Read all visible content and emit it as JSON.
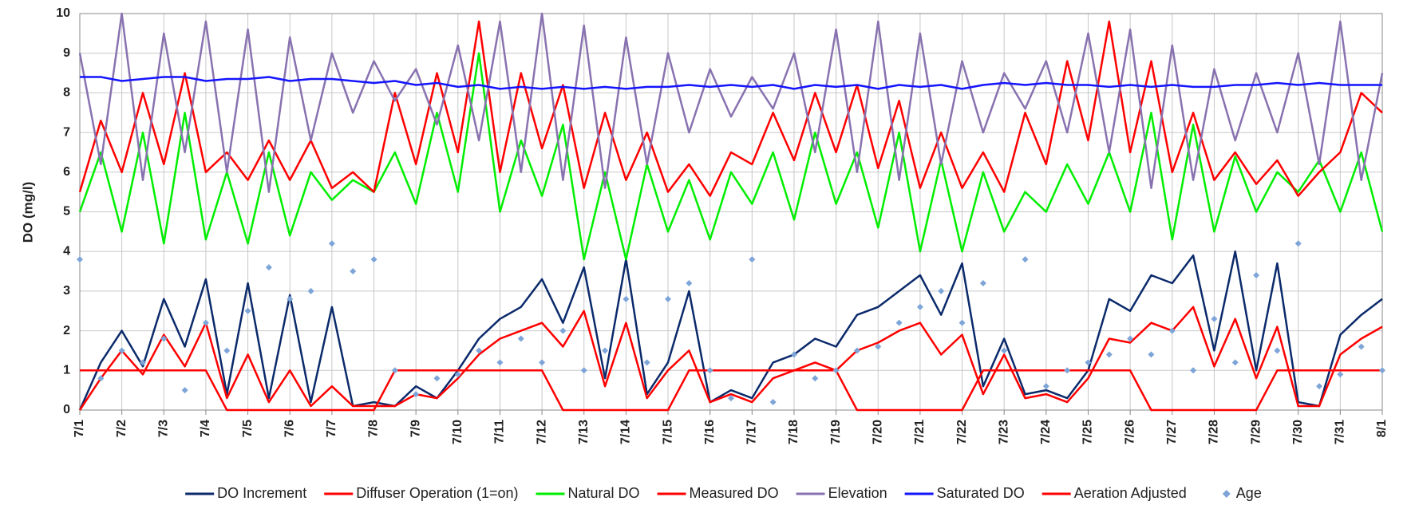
{
  "chart_data": {
    "type": "line",
    "y_label": "DO (mg/l)",
    "x": [
      0,
      0.5,
      1,
      1.5,
      2,
      2.5,
      3,
      3.5,
      4,
      4.5,
      5,
      5.5,
      6,
      6.5,
      7,
      7.5,
      8,
      8.5,
      9,
      9.5,
      10,
      10.5,
      11,
      11.5,
      12,
      12.5,
      13,
      13.5,
      14,
      14.5,
      15,
      15.5,
      16,
      16.5,
      17,
      17.5,
      18,
      18.5,
      19,
      19.5,
      20,
      20.5,
      21,
      21.5,
      22,
      22.5,
      23,
      23.5,
      24,
      24.5,
      25,
      25.5,
      26,
      26.5,
      27,
      27.5,
      28,
      28.5,
      29,
      29.5,
      30,
      30.5,
      31
    ],
    "xlim": [
      0,
      31
    ],
    "xticks": [
      {
        "value": 0,
        "label": "7/1"
      },
      {
        "value": 1,
        "label": "7/2"
      },
      {
        "value": 2,
        "label": "7/3"
      },
      {
        "value": 3,
        "label": "7/4"
      },
      {
        "value": 4,
        "label": "7/5"
      },
      {
        "value": 5,
        "label": "7/6"
      },
      {
        "value": 6,
        "label": "7/7"
      },
      {
        "value": 7,
        "label": "7/8"
      },
      {
        "value": 8,
        "label": "7/9"
      },
      {
        "value": 9,
        "label": "7/10"
      },
      {
        "value": 10,
        "label": "7/11"
      },
      {
        "value": 11,
        "label": "7/12"
      },
      {
        "value": 12,
        "label": "7/13"
      },
      {
        "value": 13,
        "label": "7/14"
      },
      {
        "value": 14,
        "label": "7/15"
      },
      {
        "value": 15,
        "label": "7/16"
      },
      {
        "value": 16,
        "label": "7/17"
      },
      {
        "value": 17,
        "label": "7/18"
      },
      {
        "value": 18,
        "label": "7/19"
      },
      {
        "value": 19,
        "label": "7/20"
      },
      {
        "value": 20,
        "label": "7/21"
      },
      {
        "value": 21,
        "label": "7/22"
      },
      {
        "value": 22,
        "label": "7/23"
      },
      {
        "value": 23,
        "label": "7/24"
      },
      {
        "value": 24,
        "label": "7/25"
      },
      {
        "value": 25,
        "label": "7/26"
      },
      {
        "value": 26,
        "label": "7/27"
      },
      {
        "value": 27,
        "label": "7/28"
      },
      {
        "value": 28,
        "label": "7/29"
      },
      {
        "value": 29,
        "label": "7/30"
      },
      {
        "value": 30,
        "label": "7/31"
      },
      {
        "value": 31,
        "label": "8/1"
      }
    ],
    "ylim": [
      0,
      10
    ],
    "yticks": [
      0,
      1,
      2,
      3,
      4,
      5,
      6,
      7,
      8,
      9,
      10
    ],
    "grid": true,
    "legend": "bottom",
    "series": [
      {
        "name": "DO Increment",
        "color": "#0b2a6b",
        "type": "line",
        "values": [
          0,
          1.2,
          2.0,
          1.1,
          2.8,
          1.6,
          3.3,
          0.4,
          3.2,
          0.3,
          2.9,
          0.2,
          2.6,
          0.1,
          0.2,
          0.1,
          0.6,
          0.3,
          1.0,
          1.8,
          2.3,
          2.6,
          3.3,
          2.2,
          3.6,
          0.8,
          3.8,
          0.4,
          1.2,
          3.0,
          0.2,
          0.5,
          0.3,
          1.2,
          1.4,
          1.8,
          1.6,
          2.4,
          2.6,
          3.0,
          3.4,
          2.4,
          3.7,
          0.6,
          1.8,
          0.4,
          0.5,
          0.3,
          1.0,
          2.8,
          2.5,
          3.4,
          3.2,
          3.9,
          1.5,
          4.0,
          1.0,
          3.7,
          0.2,
          0.1,
          1.9,
          2.4,
          2.8
        ]
      },
      {
        "name": "Diffuser Operation (1=on)",
        "color": "#ff0000",
        "type": "line",
        "values": [
          1,
          1,
          1,
          1,
          1,
          1,
          1,
          0,
          0,
          0,
          0,
          0,
          0,
          0,
          0,
          1,
          1,
          1,
          1,
          1,
          1,
          1,
          1,
          0,
          0,
          0,
          0,
          0,
          0,
          1,
          1,
          1,
          1,
          1,
          1,
          1,
          1,
          0,
          0,
          0,
          0,
          0,
          0,
          1,
          1,
          1,
          1,
          1,
          1,
          1,
          1,
          0,
          0,
          0,
          0,
          0,
          0,
          1,
          1,
          1,
          1,
          1,
          1
        ]
      },
      {
        "name": "Natural DO",
        "color": "#00ee00",
        "type": "line",
        "values": [
          5.0,
          6.5,
          4.5,
          7.0,
          4.2,
          7.5,
          4.3,
          6.0,
          4.2,
          6.5,
          4.4,
          6.0,
          5.3,
          5.8,
          5.5,
          6.5,
          5.2,
          7.5,
          5.5,
          9.0,
          5.0,
          6.8,
          5.4,
          7.2,
          3.8,
          6.0,
          3.8,
          6.2,
          4.5,
          5.8,
          4.3,
          6.0,
          5.2,
          6.5,
          4.8,
          7.0,
          5.2,
          6.5,
          4.6,
          7.0,
          4.0,
          6.3,
          4.0,
          6.0,
          4.5,
          5.5,
          5.0,
          6.2,
          5.2,
          6.5,
          5.0,
          7.5,
          4.3,
          7.2,
          4.5,
          6.4,
          5.0,
          6.0,
          5.5,
          6.3,
          5.0,
          6.5,
          4.5
        ]
      },
      {
        "name": "Measured DO",
        "color": "#ff0000",
        "type": "line",
        "values": [
          5.5,
          7.3,
          6.0,
          8.0,
          6.2,
          8.5,
          6.0,
          6.5,
          5.8,
          6.8,
          5.8,
          6.8,
          5.6,
          6.0,
          5.5,
          8.0,
          6.2,
          8.5,
          6.5,
          9.8,
          6.0,
          8.5,
          6.6,
          8.2,
          5.6,
          7.5,
          5.8,
          7.0,
          5.5,
          6.2,
          5.4,
          6.5,
          6.2,
          7.5,
          6.3,
          8.0,
          6.5,
          8.2,
          6.1,
          7.8,
          5.6,
          7.0,
          5.6,
          6.5,
          5.5,
          7.5,
          6.2,
          8.8,
          6.8,
          9.8,
          6.5,
          8.8,
          6.0,
          7.5,
          5.8,
          6.5,
          5.7,
          6.3,
          5.4,
          6.0,
          6.5,
          8.0,
          7.5
        ]
      },
      {
        "name": "Elevation",
        "color": "#8872b0",
        "type": "line",
        "values": [
          9.0,
          6.2,
          10,
          5.8,
          9.5,
          6.5,
          9.8,
          6.0,
          9.6,
          5.5,
          9.4,
          6.8,
          9.0,
          7.5,
          8.8,
          7.8,
          8.6,
          7.2,
          9.2,
          6.8,
          9.8,
          6.0,
          10,
          5.8,
          9.7,
          5.6,
          9.4,
          6.2,
          9.0,
          7.0,
          8.6,
          7.4,
          8.4,
          7.6,
          9.0,
          6.5,
          9.6,
          6.0,
          9.8,
          5.8,
          9.5,
          6.2,
          8.8,
          7.0,
          8.5,
          7.6,
          8.8,
          7.0,
          9.5,
          6.5,
          9.6,
          5.6,
          9.2,
          5.8,
          8.6,
          6.8,
          8.5,
          7.0,
          9.0,
          6.2,
          9.8,
          5.8,
          8.5
        ]
      },
      {
        "name": "Saturated DO",
        "color": "#1414ff",
        "type": "line",
        "values": [
          8.4,
          8.4,
          8.3,
          8.35,
          8.4,
          8.4,
          8.3,
          8.35,
          8.35,
          8.4,
          8.3,
          8.35,
          8.35,
          8.3,
          8.25,
          8.3,
          8.2,
          8.25,
          8.15,
          8.2,
          8.1,
          8.15,
          8.1,
          8.15,
          8.1,
          8.15,
          8.1,
          8.15,
          8.15,
          8.2,
          8.15,
          8.2,
          8.15,
          8.2,
          8.1,
          8.2,
          8.15,
          8.2,
          8.1,
          8.2,
          8.15,
          8.2,
          8.1,
          8.2,
          8.25,
          8.2,
          8.25,
          8.2,
          8.2,
          8.15,
          8.2,
          8.15,
          8.2,
          8.15,
          8.15,
          8.2,
          8.2,
          8.25,
          8.2,
          8.25,
          8.2,
          8.2,
          8.2
        ]
      },
      {
        "name": "Aeration Adjusted",
        "color": "#ff0000",
        "type": "line",
        "values": [
          0,
          0.8,
          1.5,
          0.9,
          1.9,
          1.1,
          2.2,
          0.3,
          1.4,
          0.2,
          1.0,
          0.1,
          0.6,
          0.1,
          0.1,
          0.1,
          0.4,
          0.3,
          0.8,
          1.4,
          1.8,
          2.0,
          2.2,
          1.6,
          2.5,
          0.6,
          2.2,
          0.3,
          1.0,
          1.5,
          0.2,
          0.4,
          0.2,
          0.8,
          1.0,
          1.2,
          1.0,
          1.5,
          1.7,
          2.0,
          2.2,
          1.4,
          1.9,
          0.4,
          1.4,
          0.3,
          0.4,
          0.2,
          0.8,
          1.8,
          1.7,
          2.2,
          2.0,
          2.6,
          1.1,
          2.3,
          0.8,
          2.1,
          0.1,
          0.1,
          1.4,
          1.8,
          2.1
        ]
      },
      {
        "name": "Age",
        "color": "#7ea5d8",
        "type": "scatter",
        "values": [
          3.8,
          0.8,
          1.5,
          1.2,
          1.8,
          0.5,
          2.2,
          1.5,
          2.5,
          3.6,
          2.8,
          3.0,
          4.2,
          3.5,
          3.8,
          1.0,
          0.4,
          0.8,
          0.9,
          1.5,
          1.2,
          1.8,
          1.2,
          2.0,
          1.0,
          1.5,
          2.8,
          1.2,
          2.8,
          3.2,
          1.0,
          0.3,
          3.8,
          0.2,
          1.4,
          0.8,
          1.0,
          1.5,
          1.6,
          2.2,
          2.6,
          3.0,
          2.2,
          3.2,
          1.5,
          3.8,
          0.6,
          1.0,
          1.2,
          1.4,
          1.8,
          1.4,
          2.0,
          1.0,
          2.3,
          1.2,
          3.4,
          1.5,
          4.2,
          0.6,
          0.9,
          1.6,
          1.0
        ]
      }
    ]
  }
}
